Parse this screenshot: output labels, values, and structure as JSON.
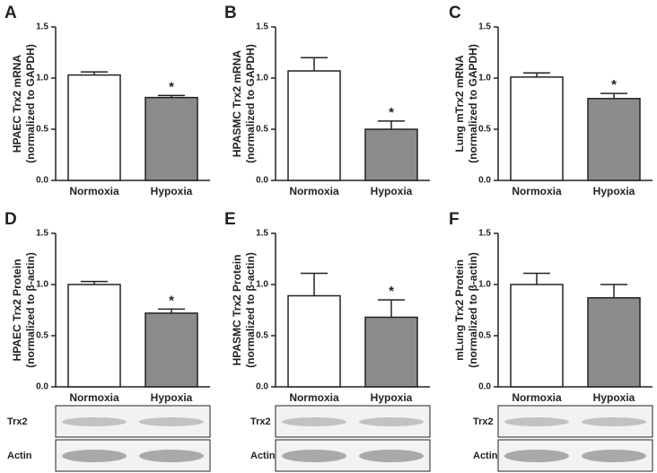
{
  "chart_data": [
    {
      "type": "bar",
      "panel": "A",
      "ylabel": [
        "HPAEC Trx2 mRNA",
        "(normalized to GAPDH)"
      ],
      "categories": [
        "Normoxia",
        "Hypoxia"
      ],
      "values": [
        1.03,
        0.81
      ],
      "errors": [
        0.03,
        0.02
      ],
      "colors": [
        "#ffffff",
        "#8c8c8c"
      ],
      "significance": [
        null,
        "*"
      ],
      "ylim": [
        0,
        1.5
      ],
      "yticks": [
        {
          "value": 0,
          "label": "0.0"
        },
        {
          "value": 0.5,
          "label": "0.5"
        },
        {
          "value": 1,
          "label": "1.0"
        },
        {
          "value": 1.5,
          "label": "1.5"
        }
      ]
    },
    {
      "type": "bar",
      "panel": "B",
      "ylabel": [
        "HPASMC Trx2 mRNA",
        "(normalized to GAPDH)"
      ],
      "categories": [
        "Normoxia",
        "Hypoxia"
      ],
      "values": [
        1.07,
        0.5
      ],
      "errors": [
        0.13,
        0.08
      ],
      "colors": [
        "#ffffff",
        "#8c8c8c"
      ],
      "significance": [
        null,
        "*"
      ],
      "ylim": [
        0,
        1.5
      ],
      "yticks": [
        {
          "value": 0,
          "label": "0.0"
        },
        {
          "value": 0.5,
          "label": "0.5"
        },
        {
          "value": 1,
          "label": "1.0"
        },
        {
          "value": 1.5,
          "label": "1.5"
        }
      ]
    },
    {
      "type": "bar",
      "panel": "C",
      "ylabel": [
        "Lung mTrx2 mRNA",
        "(normalized to GAPDH)"
      ],
      "categories": [
        "Normoxia",
        "Hypoxia"
      ],
      "values": [
        1.01,
        0.8
      ],
      "errors": [
        0.04,
        0.05
      ],
      "colors": [
        "#ffffff",
        "#8c8c8c"
      ],
      "significance": [
        null,
        "*"
      ],
      "ylim": [
        0,
        1.5
      ],
      "yticks": [
        {
          "value": 0,
          "label": "0.0"
        },
        {
          "value": 0.5,
          "label": "0.5"
        },
        {
          "value": 1,
          "label": "1.0"
        },
        {
          "value": 1.5,
          "label": "1.5"
        }
      ]
    },
    {
      "type": "bar",
      "panel": "D",
      "ylabel": [
        "HPAEC Trx2 Protein",
        "(normalized to β-actin)"
      ],
      "categories": [
        "Normoxia",
        "Hypoxia"
      ],
      "values": [
        1.0,
        0.72
      ],
      "errors": [
        0.03,
        0.04
      ],
      "colors": [
        "#ffffff",
        "#8c8c8c"
      ],
      "significance": [
        null,
        "*"
      ],
      "ylim": [
        0,
        1.5
      ],
      "yticks": [
        {
          "value": 0,
          "label": "0.0"
        },
        {
          "value": 0.5,
          "label": "0.5"
        },
        {
          "value": 1,
          "label": "1.0"
        },
        {
          "value": 1.5,
          "label": "1.5"
        }
      ],
      "blots": [
        "Trx2",
        "Actin"
      ]
    },
    {
      "type": "bar",
      "panel": "E",
      "ylabel": [
        "HPASMC Trx2 Protein",
        "(normalized to β-actin)"
      ],
      "categories": [
        "Normoxia",
        "Hypoxia"
      ],
      "values": [
        0.89,
        0.68
      ],
      "errors": [
        0.22,
        0.17
      ],
      "colors": [
        "#ffffff",
        "#8c8c8c"
      ],
      "significance": [
        null,
        "*"
      ],
      "ylim": [
        0,
        1.5
      ],
      "yticks": [
        {
          "value": 0,
          "label": "0.0"
        },
        {
          "value": 0.5,
          "label": "0.5"
        },
        {
          "value": 1,
          "label": "1.0"
        },
        {
          "value": 1.5,
          "label": "1.5"
        }
      ],
      "blots": [
        "Trx2",
        "Actin"
      ]
    },
    {
      "type": "bar",
      "panel": "F",
      "ylabel": [
        "mLung Trx2 Protein",
        "(normalized to β-actin)"
      ],
      "categories": [
        "Normoxia",
        "Hypoxia"
      ],
      "values": [
        1.0,
        0.87
      ],
      "errors": [
        0.11,
        0.13
      ],
      "colors": [
        "#ffffff",
        "#8c8c8c"
      ],
      "significance": [
        null,
        null
      ],
      "ylim": [
        0,
        1.5
      ],
      "yticks": [
        {
          "value": 0,
          "label": "0.0"
        },
        {
          "value": 0.5,
          "label": "0.5"
        },
        {
          "value": 1,
          "label": "1.0"
        },
        {
          "value": 1.5,
          "label": "1.5"
        }
      ],
      "blots": [
        "Trx2",
        "Actin"
      ]
    }
  ]
}
